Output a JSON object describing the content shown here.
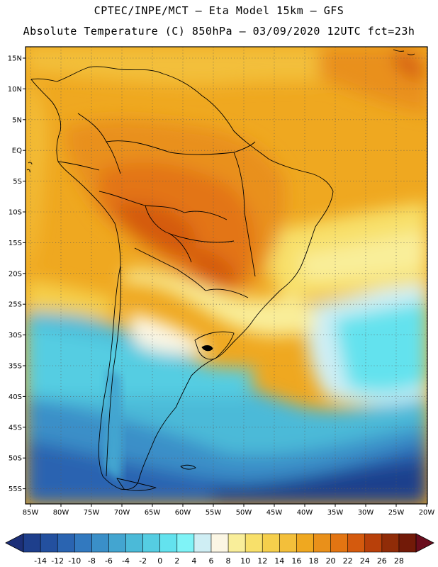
{
  "header": {
    "line1": "CPTEC/INPE/MCT –  Eta Model 15km – GFS",
    "line2": "Absolute Temperature (C) 850hPa – 03/09/2020 12UTC fct=23h"
  },
  "map": {
    "region": "South America",
    "lat_labels": [
      "15N",
      "10N",
      "5N",
      "EQ",
      "5S",
      "10S",
      "15S",
      "20S",
      "25S",
      "30S",
      "35S",
      "40S",
      "45S",
      "50S",
      "55S"
    ],
    "lon_labels": [
      "85W",
      "80W",
      "75W",
      "70W",
      "65W",
      "60W",
      "55W",
      "50W",
      "45W",
      "40W",
      "35W",
      "30W",
      "25W",
      "20W"
    ]
  },
  "colorbar": {
    "labels": [
      "-14",
      "-12",
      "-10",
      "-8",
      "-6",
      "-4",
      "-2",
      "0",
      "2",
      "4",
      "6",
      "8",
      "10",
      "12",
      "14",
      "16",
      "18",
      "20",
      "22",
      "24",
      "26",
      "28"
    ],
    "colors": [
      "#1e3f8c",
      "#23509f",
      "#2a64b1",
      "#3279bf",
      "#3a8fc8",
      "#43a5d0",
      "#4bbad8",
      "#55cde2",
      "#63e2ee",
      "#7ff3f7",
      "#cfeef4",
      "#fbf6e4",
      "#f9ee9a",
      "#f8e06a",
      "#f5cf4c",
      "#f3bf3a",
      "#efa820",
      "#e9901a",
      "#e37512",
      "#d45a0e",
      "#b8400a",
      "#902c08",
      "#721a08"
    ],
    "under_color": "#1c2f78",
    "over_color": "#6a0d1d"
  }
}
